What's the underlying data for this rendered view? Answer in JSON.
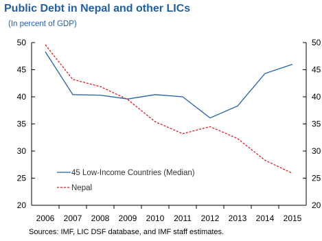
{
  "chart_data": {
    "type": "line",
    "title": "Public Debt in Nepal and other LICs",
    "subtitle": "(In percent of GDP)",
    "x": [
      "2006",
      "2007",
      "2008",
      "2009",
      "2010",
      "2011",
      "2012",
      "2013",
      "2014",
      "2015"
    ],
    "ylim": [
      20,
      50
    ],
    "yticks": [
      20,
      25,
      30,
      35,
      40,
      45,
      50
    ],
    "grid": false,
    "legend_position": "lower-left",
    "series": [
      {
        "name": "45 Low-Income Countries (Median)",
        "values": [
          48.3,
          40.4,
          40.3,
          39.6,
          40.4,
          40.0,
          36.1,
          38.3,
          44.3,
          46.0
        ],
        "color": "#1f5fa8",
        "style": "solid"
      },
      {
        "name": "Nepal",
        "values": [
          49.6,
          43.2,
          41.9,
          39.5,
          35.4,
          33.2,
          34.5,
          32.3,
          28.3,
          25.9
        ],
        "color": "#e8141a",
        "style": "dashed"
      }
    ],
    "source": "Sources: IMF, LIC DSF database, and IMF staff estimates."
  }
}
